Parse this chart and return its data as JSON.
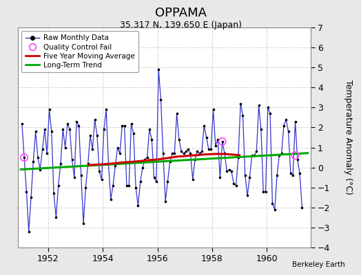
{
  "title": "OPPAMA",
  "subtitle": "35.317 N, 139.650 E (Japan)",
  "ylabel": "Temperature Anomaly (°C)",
  "credit": "Berkeley Earth",
  "background_color": "#e8e8e8",
  "plot_bg_color": "#ffffff",
  "xlim": [
    1950.9,
    1961.6
  ],
  "ylim": [
    -4,
    7
  ],
  "yticks": [
    -4,
    -3,
    -2,
    -1,
    0,
    1,
    2,
    3,
    4,
    5,
    6,
    7
  ],
  "xticks": [
    1952,
    1954,
    1956,
    1958,
    1960
  ],
  "raw_data": {
    "x": [
      1951.042,
      1951.125,
      1951.208,
      1951.292,
      1951.375,
      1951.458,
      1951.542,
      1951.625,
      1951.708,
      1951.792,
      1951.875,
      1951.958,
      1952.042,
      1952.125,
      1952.208,
      1952.292,
      1952.375,
      1952.458,
      1952.542,
      1952.625,
      1952.708,
      1952.792,
      1952.875,
      1952.958,
      1953.042,
      1953.125,
      1953.208,
      1953.292,
      1953.375,
      1953.458,
      1953.542,
      1953.625,
      1953.708,
      1953.792,
      1953.875,
      1953.958,
      1954.042,
      1954.125,
      1954.208,
      1954.292,
      1954.375,
      1954.458,
      1954.542,
      1954.625,
      1954.708,
      1954.792,
      1954.875,
      1954.958,
      1955.042,
      1955.125,
      1955.208,
      1955.292,
      1955.375,
      1955.458,
      1955.542,
      1955.625,
      1955.708,
      1955.792,
      1955.875,
      1955.958,
      1956.042,
      1956.125,
      1956.208,
      1956.292,
      1956.375,
      1956.458,
      1956.542,
      1956.625,
      1956.708,
      1956.792,
      1956.875,
      1956.958,
      1957.042,
      1957.125,
      1957.208,
      1957.292,
      1957.375,
      1957.458,
      1957.542,
      1957.625,
      1957.708,
      1957.792,
      1957.875,
      1957.958,
      1958.042,
      1958.125,
      1958.208,
      1958.292,
      1958.375,
      1958.458,
      1958.542,
      1958.625,
      1958.708,
      1958.792,
      1958.875,
      1958.958,
      1959.042,
      1959.125,
      1959.208,
      1959.292,
      1959.375,
      1959.458,
      1959.542,
      1959.625,
      1959.708,
      1959.792,
      1959.875,
      1959.958,
      1960.042,
      1960.125,
      1960.208,
      1960.292,
      1960.375,
      1960.458,
      1960.542,
      1960.625,
      1960.708,
      1960.792,
      1960.875,
      1960.958,
      1961.042,
      1961.125,
      1961.208,
      1961.292
    ],
    "y": [
      2.2,
      0.5,
      -1.2,
      -3.2,
      -1.5,
      0.3,
      1.8,
      0.5,
      -0.1,
      0.9,
      1.9,
      0.7,
      2.9,
      1.8,
      -1.3,
      -2.5,
      -0.9,
      0.2,
      1.9,
      1.0,
      2.2,
      1.9,
      0.4,
      -0.5,
      2.3,
      2.1,
      -0.4,
      -2.8,
      -1.0,
      0.2,
      1.6,
      0.9,
      2.4,
      1.6,
      -0.2,
      -0.6,
      1.9,
      2.9,
      0.2,
      -1.6,
      -0.9,
      0.1,
      1.0,
      0.7,
      2.1,
      2.1,
      -0.9,
      -0.9,
      2.2,
      1.7,
      -1.0,
      -1.9,
      -0.7,
      0.0,
      0.4,
      0.5,
      1.9,
      1.4,
      -0.5,
      -0.7,
      4.9,
      3.4,
      0.7,
      -1.7,
      -0.7,
      0.3,
      0.7,
      0.7,
      2.7,
      1.4,
      0.8,
      0.7,
      0.8,
      0.9,
      0.7,
      -0.6,
      0.4,
      0.8,
      0.7,
      0.8,
      2.1,
      1.5,
      0.9,
      0.9,
      2.9,
      1.1,
      1.4,
      -0.5,
      1.3,
      0.7,
      -0.2,
      -0.1,
      -0.2,
      -0.8,
      -0.9,
      0.5,
      3.2,
      2.6,
      -0.4,
      -1.4,
      -0.5,
      0.6,
      0.6,
      0.8,
      3.1,
      1.9,
      -1.2,
      -1.2,
      3.0,
      2.7,
      -1.8,
      -2.1,
      -0.4,
      0.6,
      0.7,
      2.1,
      2.4,
      1.8,
      -0.3,
      -0.4,
      2.3,
      0.4,
      -0.3,
      -2.0
    ]
  },
  "qc_fail": {
    "x": [
      1951.125,
      1958.375,
      1961.042
    ],
    "y": [
      0.5,
      1.3,
      0.6
    ]
  },
  "moving_avg": {
    "x": [
      1953.5,
      1953.7,
      1954.0,
      1954.2,
      1954.5,
      1954.7,
      1955.0,
      1955.2,
      1955.5,
      1955.7,
      1956.0,
      1956.2,
      1956.5,
      1956.7,
      1957.0,
      1957.2,
      1957.5,
      1957.7,
      1958.0,
      1958.2,
      1958.5,
      1958.7,
      1959.0
    ],
    "y": [
      0.12,
      0.14,
      0.16,
      0.18,
      0.22,
      0.25,
      0.28,
      0.3,
      0.34,
      0.37,
      0.4,
      0.44,
      0.5,
      0.54,
      0.57,
      0.6,
      0.62,
      0.65,
      0.67,
      0.68,
      0.67,
      0.65,
      0.62
    ]
  },
  "trend": {
    "x": [
      1951.0,
      1961.5
    ],
    "y": [
      -0.1,
      0.72
    ]
  },
  "line_color": "#3333cc",
  "marker_color": "#000000",
  "qc_color": "#ff44ff",
  "moving_avg_color": "#cc0000",
  "trend_color": "#00aa00",
  "grid_color": "#cccccc",
  "title_fontsize": 13,
  "subtitle_fontsize": 9,
  "tick_fontsize": 9,
  "ylabel_fontsize": 9
}
